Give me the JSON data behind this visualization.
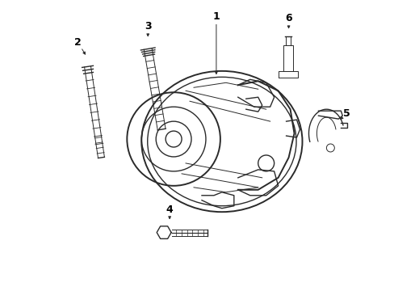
{
  "bg_color": "#ffffff",
  "line_color": "#2a2a2a",
  "figsize": [
    4.89,
    3.6
  ],
  "dpi": 100,
  "lw": 1.0,
  "lw_thick": 1.4,
  "lw_thin": 0.7
}
